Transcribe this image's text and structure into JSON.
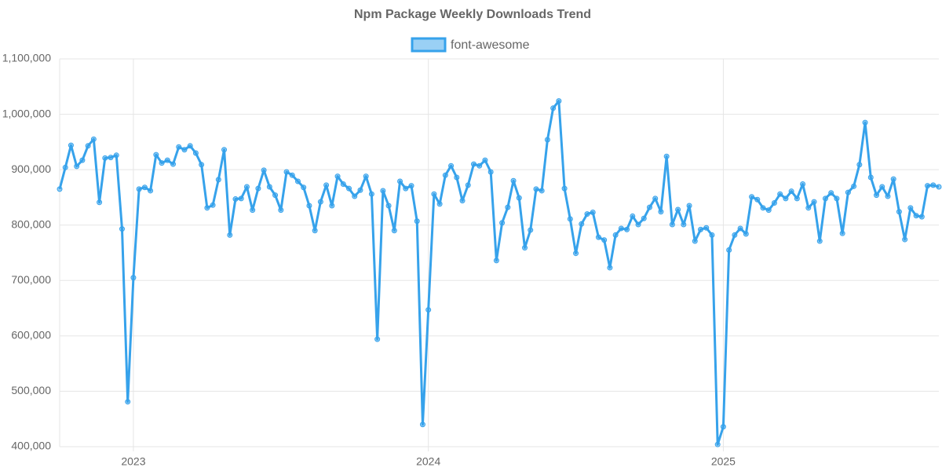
{
  "chart_data": {
    "type": "line",
    "title": "Npm Package Weekly Downloads Trend",
    "categories": [
      null,
      null,
      null,
      null,
      null,
      null,
      null,
      null,
      null,
      null,
      null,
      null,
      null,
      "2023",
      null,
      null,
      null,
      null,
      null,
      null,
      null,
      null,
      null,
      null,
      null,
      null,
      null,
      null,
      null,
      null,
      null,
      null,
      null,
      null,
      null,
      null,
      null,
      null,
      null,
      null,
      null,
      null,
      null,
      null,
      null,
      null,
      null,
      null,
      null,
      null,
      null,
      null,
      null,
      null,
      null,
      null,
      null,
      null,
      null,
      null,
      null,
      null,
      null,
      null,
      null,
      "2024",
      null,
      null,
      null,
      null,
      null,
      null,
      null,
      null,
      null,
      null,
      null,
      null,
      null,
      null,
      null,
      null,
      null,
      null,
      null,
      null,
      null,
      null,
      null,
      null,
      null,
      null,
      null,
      null,
      null,
      null,
      null,
      null,
      null,
      null,
      null,
      null,
      null,
      null,
      null,
      null,
      null,
      null,
      null,
      null,
      null,
      null,
      null,
      null,
      null,
      null,
      null,
      "2025",
      null,
      null,
      null,
      null,
      null,
      null,
      null,
      null,
      null,
      null,
      null,
      null,
      null,
      null,
      null,
      null,
      null,
      null,
      null,
      null,
      null,
      null,
      null,
      null,
      null,
      null,
      null,
      null,
      null,
      null,
      null,
      null,
      null,
      null,
      null,
      null,
      null,
      null
    ],
    "series": [
      {
        "name": "font-awesome",
        "color": "#36a2eb",
        "values": [
          865000,
          904000,
          944000,
          906000,
          917000,
          943000,
          955000,
          841000,
          921000,
          922000,
          926000,
          793000,
          481000,
          705000,
          865000,
          868000,
          862000,
          927000,
          912000,
          917000,
          910000,
          941000,
          936000,
          943000,
          930000,
          909000,
          831000,
          836000,
          882000,
          936000,
          782000,
          847000,
          848000,
          869000,
          827000,
          866000,
          899000,
          869000,
          854000,
          827000,
          896000,
          890000,
          879000,
          868000,
          835000,
          790000,
          842000,
          872000,
          835000,
          888000,
          874000,
          866000,
          852000,
          863000,
          888000,
          856000,
          594000,
          862000,
          835000,
          790000,
          879000,
          866000,
          871000,
          807000,
          440000,
          647000,
          856000,
          838000,
          890000,
          907000,
          886000,
          844000,
          872000,
          910000,
          907000,
          917000,
          896000,
          736000,
          804000,
          832000,
          880000,
          849000,
          759000,
          791000,
          865000,
          862000,
          954000,
          1011000,
          1024000,
          866000,
          811000,
          749000,
          802000,
          820000,
          823000,
          778000,
          773000,
          723000,
          782000,
          794000,
          792000,
          816000,
          801000,
          812000,
          832000,
          848000,
          824000,
          924000,
          801000,
          828000,
          801000,
          835000,
          771000,
          792000,
          795000,
          782000,
          404000,
          436000,
          755000,
          782000,
          794000,
          784000,
          851000,
          846000,
          831000,
          827000,
          840000,
          856000,
          848000,
          861000,
          848000,
          874000,
          831000,
          842000,
          771000,
          848000,
          858000,
          848000,
          785000,
          859000,
          870000,
          909000,
          985000,
          886000,
          854000,
          869000,
          852000,
          883000,
          824000,
          774000,
          831000,
          817000,
          815000,
          871000,
          872000,
          869000
        ]
      }
    ],
    "ylim": [
      400000,
      1100000
    ],
    "yticks": [
      {
        "value": 400000,
        "label": "400,000"
      },
      {
        "value": 500000,
        "label": "500,000"
      },
      {
        "value": 600000,
        "label": "600,000"
      },
      {
        "value": 700000,
        "label": "700,000"
      },
      {
        "value": 800000,
        "label": "800,000"
      },
      {
        "value": 900000,
        "label": "900,000"
      },
      {
        "value": 1000000,
        "label": "1,000,000"
      },
      {
        "value": 1100000,
        "label": "1,100,000"
      }
    ],
    "grid": true,
    "legend": "top"
  }
}
